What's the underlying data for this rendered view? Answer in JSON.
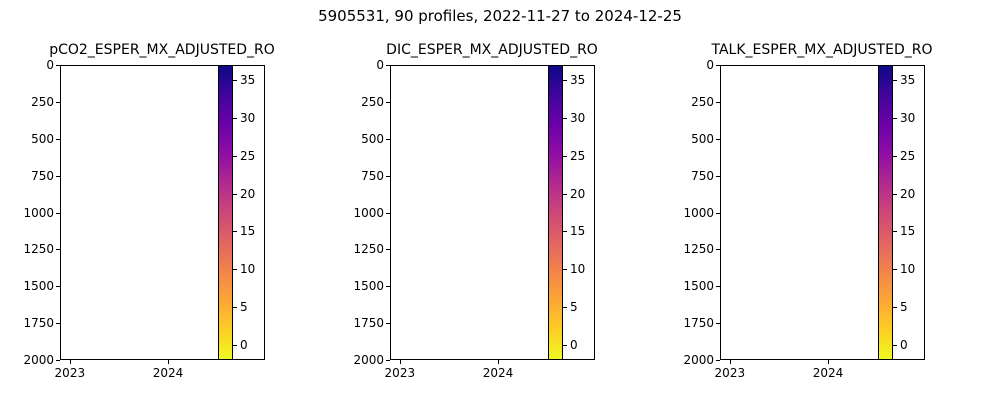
{
  "figure": {
    "suptitle": "5905531, 90 profiles, 2022-11-27 to 2024-12-25"
  },
  "axes_shared": {
    "ylim": [
      2000,
      0
    ],
    "yticks": [
      0,
      250,
      500,
      750,
      1000,
      1250,
      1500,
      1750,
      2000
    ],
    "xlim": [
      "2022-11-27",
      "2024-12-25"
    ],
    "xticks": [
      {
        "label": "2023",
        "frac": 0.048
      },
      {
        "label": "2024",
        "frac": 0.527
      }
    ],
    "colorbar": {
      "ticks": [
        0,
        5,
        10,
        15,
        20,
        25,
        30,
        35
      ],
      "vmin": -2,
      "vmax": 37,
      "colormap": "plasma_r",
      "colors_top_to_bottom": [
        "#0d0887",
        "#41049d",
        "#6a00a8",
        "#8f0da4",
        "#b12a90",
        "#cc4778",
        "#e16462",
        "#f2844b",
        "#fca636",
        "#fcce25",
        "#f0f921"
      ]
    }
  },
  "chart_data": [
    {
      "type": "scatter",
      "title": "pCO2_ESPER_MX_ADJUSTED_RO",
      "xlabel": "",
      "ylabel": "",
      "xlim": [
        "2022-11-27",
        "2024-12-25"
      ],
      "ylim": [
        2000,
        0
      ],
      "xtick_labels": [
        "2023",
        "2024"
      ],
      "ytick_labels": [
        0,
        250,
        500,
        750,
        1000,
        1250,
        1500,
        1750,
        2000
      ],
      "points": [],
      "grid": false,
      "colorbar": {
        "ticks": [
          0,
          5,
          10,
          15,
          20,
          25,
          30,
          35
        ],
        "vmin": -2,
        "vmax": 37,
        "colormap": "plasma_r"
      }
    },
    {
      "type": "scatter",
      "title": "DIC_ESPER_MX_ADJUSTED_RO",
      "xlabel": "",
      "ylabel": "",
      "xlim": [
        "2022-11-27",
        "2024-12-25"
      ],
      "ylim": [
        2000,
        0
      ],
      "xtick_labels": [
        "2023",
        "2024"
      ],
      "ytick_labels": [
        0,
        250,
        500,
        750,
        1000,
        1250,
        1500,
        1750,
        2000
      ],
      "points": [],
      "grid": false,
      "colorbar": {
        "ticks": [
          0,
          5,
          10,
          15,
          20,
          25,
          30,
          35
        ],
        "vmin": -2,
        "vmax": 37,
        "colormap": "plasma_r"
      }
    },
    {
      "type": "scatter",
      "title": "TALK_ESPER_MX_ADJUSTED_RO",
      "xlabel": "",
      "ylabel": "",
      "xlim": [
        "2022-11-27",
        "2024-12-25"
      ],
      "ylim": [
        2000,
        0
      ],
      "xtick_labels": [
        "2023",
        "2024"
      ],
      "ytick_labels": [
        0,
        250,
        500,
        750,
        1000,
        1250,
        1500,
        1750,
        2000
      ],
      "points": [],
      "grid": false,
      "colorbar": {
        "ticks": [
          0,
          5,
          10,
          15,
          20,
          25,
          30,
          35
        ],
        "vmin": -2,
        "vmax": 37,
        "colormap": "plasma_r"
      }
    }
  ]
}
